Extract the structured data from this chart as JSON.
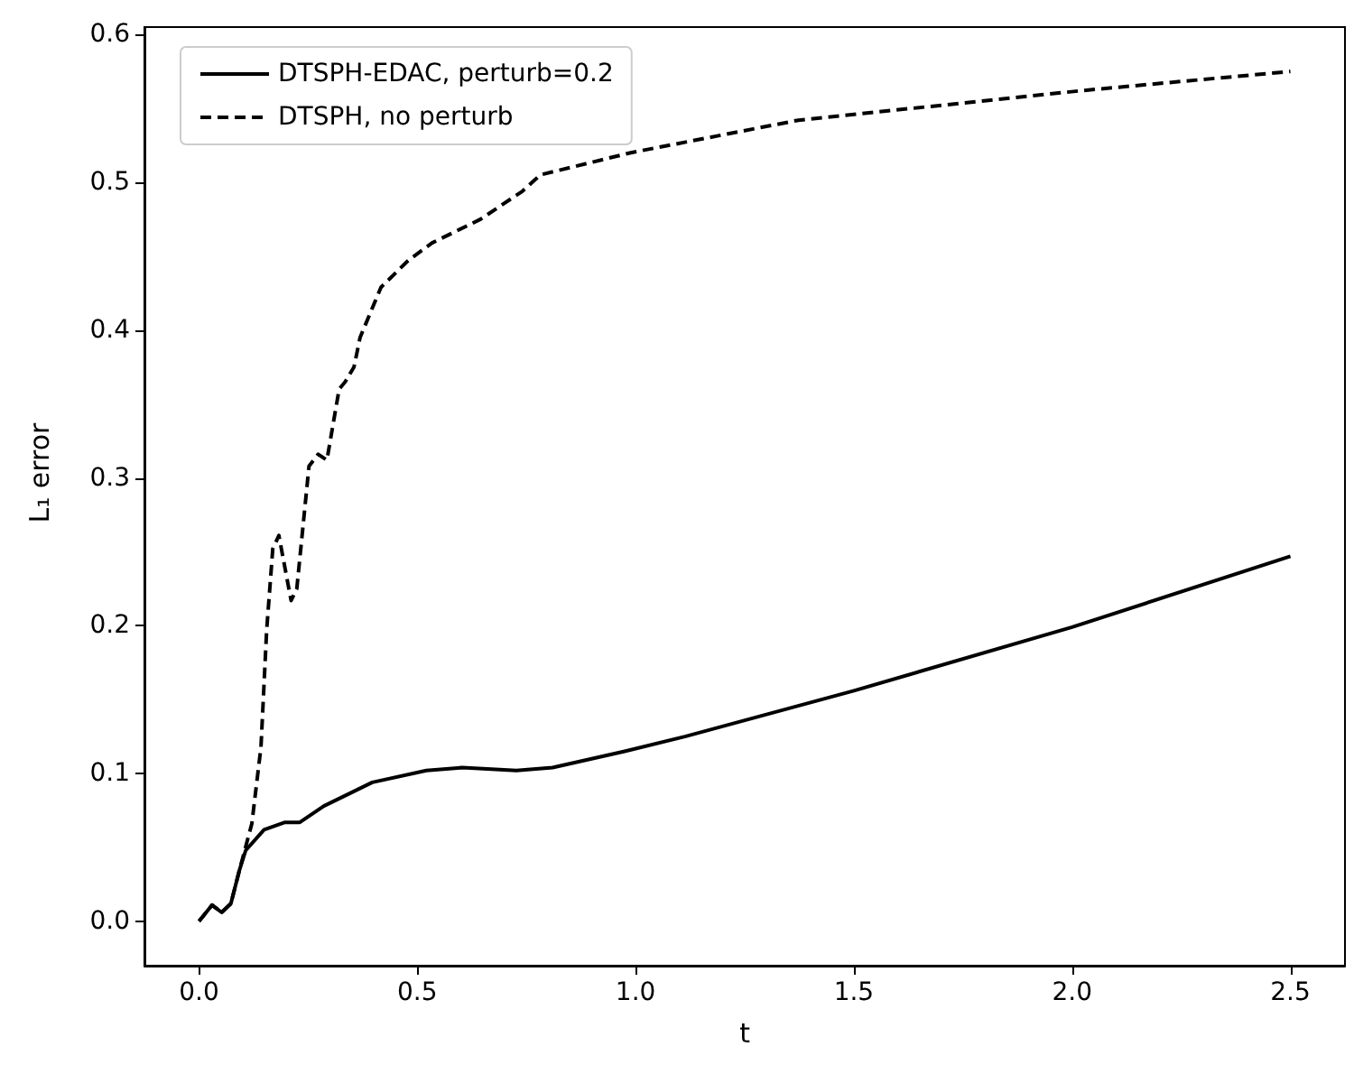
{
  "chart_data": {
    "type": "line",
    "xlabel": "t",
    "ylabel": "L₁ error",
    "xlim": [
      -0.125,
      2.625
    ],
    "ylim": [
      -0.03,
      0.605
    ],
    "xticks": [
      {
        "value": 0,
        "label": "0.0"
      },
      0.5,
      {
        "value": 1,
        "label": "1.0"
      },
      1.5,
      {
        "value": 2,
        "label": "2.0"
      },
      2.5
    ],
    "yticks": [
      {
        "value": 0,
        "label": "0.0"
      },
      0.1,
      0.2,
      0.3,
      0.4,
      0.5,
      0.6
    ],
    "grid": false,
    "legend": "top left",
    "marker": "none",
    "series": [
      {
        "name": "DTSPH-EDAC, perturb=0.2",
        "color": "#000000",
        "line_style": "solid",
        "x": [
          0,
          0.03,
          0.052,
          0.073,
          0.093,
          0.107,
          0.149,
          0.197,
          0.231,
          0.286,
          0.397,
          0.521,
          0.603,
          0.727,
          0.81,
          0.975,
          1.113,
          1.5,
          2.0,
          2.5
        ],
        "values": [
          0,
          0.011,
          0.006,
          0.012,
          0.035,
          0.048,
          0.062,
          0.067,
          0.067,
          0.078,
          0.094,
          0.102,
          0.104,
          0.102,
          0.104,
          0.115,
          0.125,
          0.156,
          0.199,
          0.247
        ]
      },
      {
        "name": "DTSPH, no perturb",
        "color": "#000000",
        "line_style": "dashed",
        "x": [
          0,
          0.03,
          0.052,
          0.073,
          0.093,
          0.121,
          0.142,
          0.155,
          0.169,
          0.183,
          0.211,
          0.224,
          0.252,
          0.273,
          0.293,
          0.321,
          0.335,
          0.355,
          0.369,
          0.417,
          0.479,
          0.534,
          0.645,
          0.741,
          0.782,
          0.989,
          1.373,
          2.022,
          2.5
        ],
        "values": [
          0,
          0.011,
          0.006,
          0.012,
          0.035,
          0.066,
          0.118,
          0.197,
          0.252,
          0.261,
          0.217,
          0.225,
          0.308,
          0.316,
          0.312,
          0.36,
          0.365,
          0.375,
          0.395,
          0.429,
          0.447,
          0.459,
          0.475,
          0.494,
          0.505,
          0.52,
          0.542,
          0.562,
          0.575
        ]
      }
    ]
  }
}
